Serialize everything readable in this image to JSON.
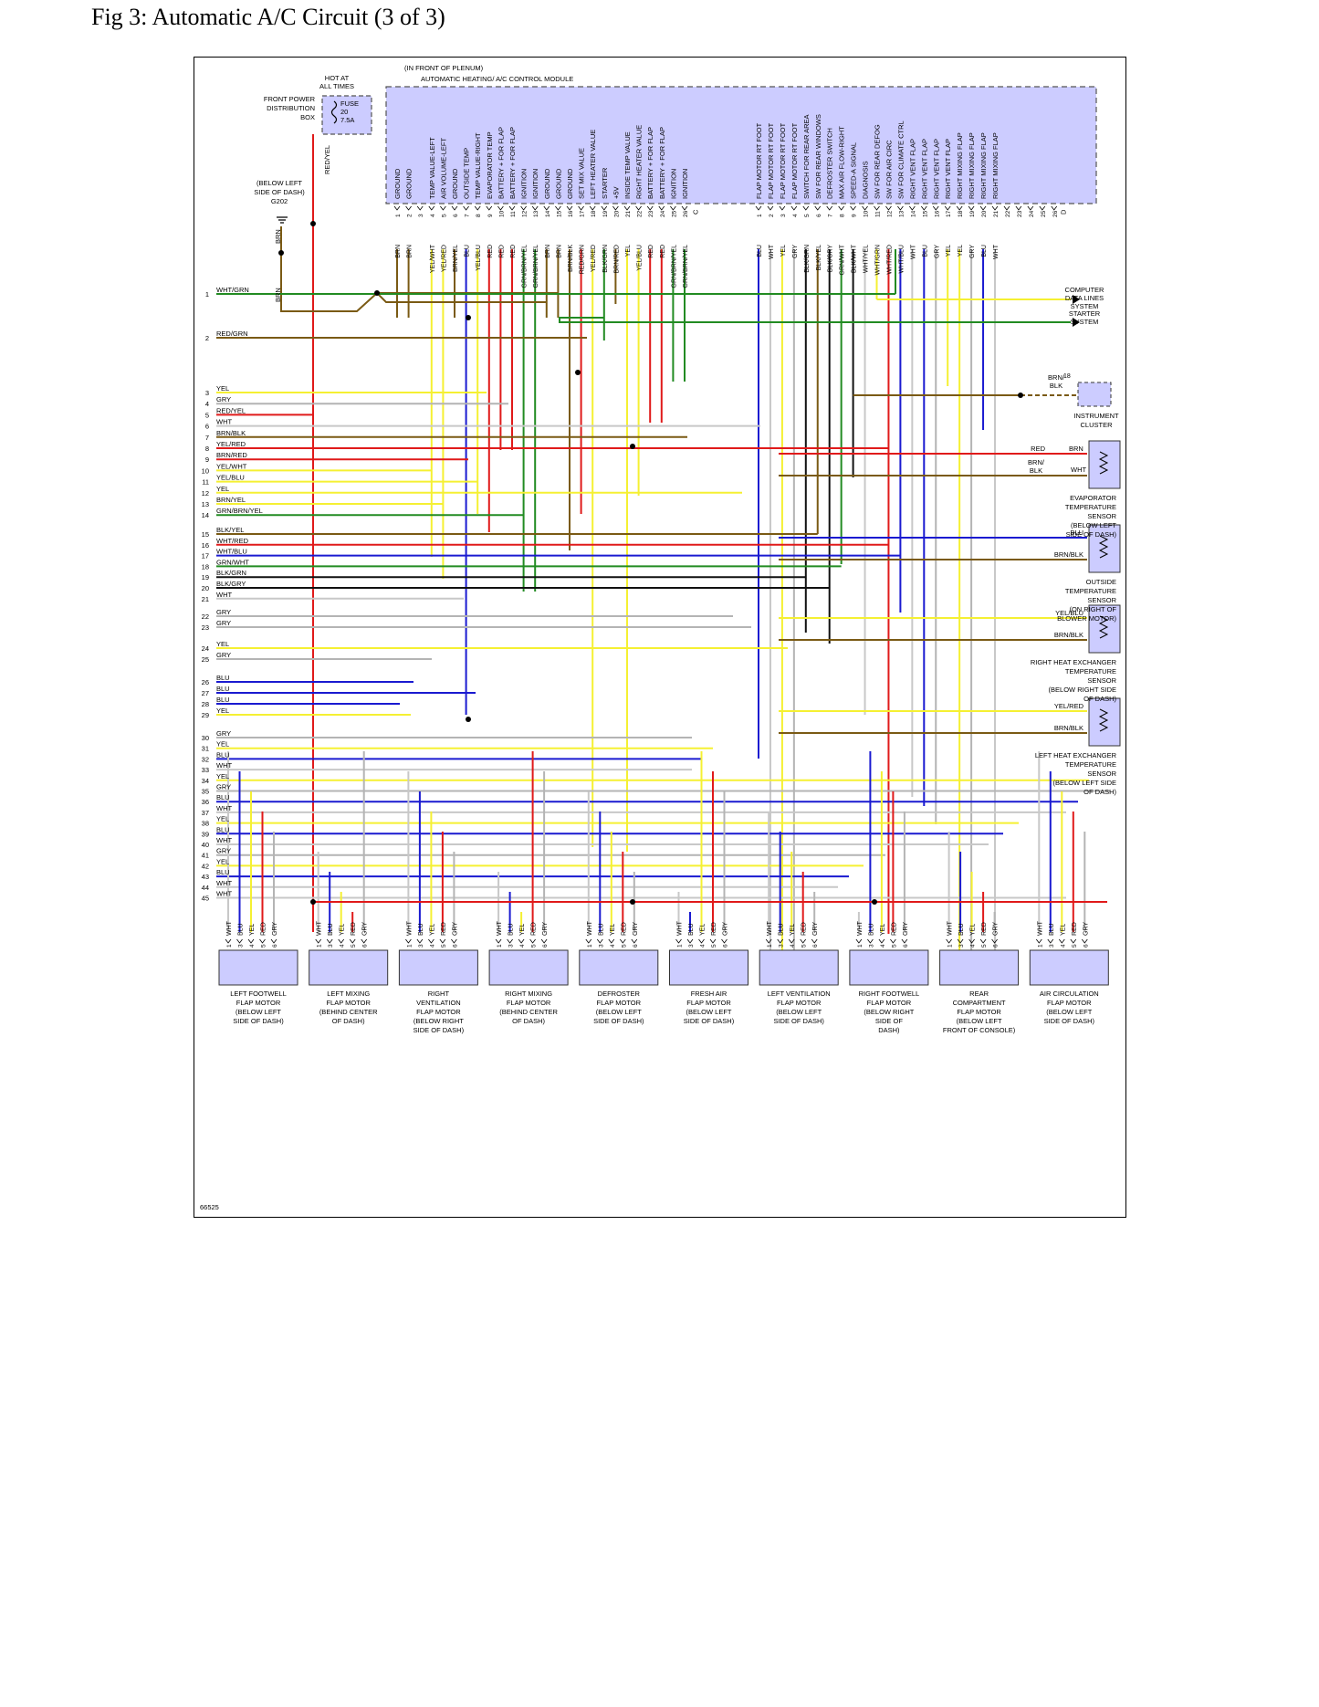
{
  "title": "Fig 3: Automatic A/C Circuit (3 of 3)",
  "figure_number": "66525",
  "colors": {
    "module_fill": "#ccccff",
    "WHT": "#c8c8c8",
    "GRY": "#b4b4b4",
    "BLU": "#1a1ad0",
    "YEL": "#f5f032",
    "RED": "#e01a1a",
    "BRN": "#7a5a14",
    "GRN": "#228b22",
    "BLK": "#111111"
  },
  "power": {
    "fpdb_label": [
      "FRONT POWER",
      "DISTRIBUTION",
      "BOX"
    ],
    "hot_label": [
      "HOT AT",
      "ALL TIMES"
    ],
    "fuse_label": [
      "FUSE",
      "20",
      "7.5A"
    ],
    "fuse_wire": "RED/YEL"
  },
  "ground": {
    "label": [
      "(BELOW LEFT",
      "SIDE OF DASH)",
      "G202"
    ],
    "wire_top": "BRN",
    "wire_bottom": "BRN"
  },
  "module": {
    "location": "(IN FRONT OF PLENUM)",
    "name": "AUTOMATIC HEATING/ A/C CONTROL MODULE",
    "connector_a": "A",
    "connector_c": "C",
    "connector_d": "D",
    "pins_a": [
      {
        "n": "1",
        "func": "GROUND",
        "wire": "BRN"
      },
      {
        "n": "2",
        "func": "GROUND",
        "wire": "BRN"
      },
      {
        "n": "3",
        "func": "",
        "wire": ""
      },
      {
        "n": "4",
        "func": "TEMP VALUE-LEFT",
        "wire": "YEL/WHT"
      },
      {
        "n": "5",
        "func": "AIR VOLUME-LEFT",
        "wire": "YEL/RED"
      },
      {
        "n": "6",
        "func": "GROUND",
        "wire": "BRN/YEL"
      },
      {
        "n": "7",
        "func": "OUTSIDE TEMP",
        "wire": "BLU"
      },
      {
        "n": "8",
        "func": "TEMP VALUE-RIGHT",
        "wire": "YEL/BLU"
      },
      {
        "n": "9",
        "func": "EVAPORATOR TEMP",
        "wire": "RED"
      },
      {
        "n": "10",
        "func": "BATTERY + FOR FLAP",
        "wire": "RED"
      },
      {
        "n": "11",
        "func": "BATTERY + FOR FLAP",
        "wire": "RED"
      },
      {
        "n": "12",
        "func": "IGNITION",
        "wire": "GRN/BRN/YEL"
      },
      {
        "n": "13",
        "func": "IGNITION",
        "wire": "GRN/BRN/YEL"
      },
      {
        "n": "14",
        "func": "GROUND",
        "wire": "BRN"
      },
      {
        "n": "15",
        "func": "GROUND",
        "wire": "BRN"
      },
      {
        "n": "16",
        "func": "GROUND",
        "wire": "BRN/BLK"
      },
      {
        "n": "17",
        "func": "SET MIX VALUE",
        "wire": "RED/GRN"
      },
      {
        "n": "18",
        "func": "LEFT HEATER VALUE",
        "wire": "YEL/RED"
      },
      {
        "n": "19",
        "func": "STARTER",
        "wire": "BLK/GRN"
      },
      {
        "n": "20",
        "func": "+5V",
        "wire": "BRN/RED"
      },
      {
        "n": "21",
        "func": "INSIDE TEMP VALUE",
        "wire": "YEL"
      },
      {
        "n": "22",
        "func": "RIGHT HEATER VALUE",
        "wire": "YEL/BLU"
      },
      {
        "n": "23",
        "func": "BATTERY + FOR FLAP",
        "wire": "RED"
      },
      {
        "n": "24",
        "func": "BATTERY + FOR FLAP",
        "wire": "RED"
      },
      {
        "n": "25",
        "func": "IGNITION",
        "wire": "GRN/BRN/YEL"
      },
      {
        "n": "26",
        "func": "IGNITION",
        "wire": "GRN/BRN/YEL"
      }
    ],
    "pins_c": [
      {
        "n": "1",
        "func": "FLAP MOTOR RT FOOT",
        "wire": "BLU"
      },
      {
        "n": "2",
        "func": "FLAP MOTOR RT FOOT",
        "wire": "WHT"
      },
      {
        "n": "3",
        "func": "FLAP MOTOR RT FOOT",
        "wire": "YEL"
      },
      {
        "n": "4",
        "func": "FLAP MOTOR RT FOOT",
        "wire": "GRY"
      },
      {
        "n": "5",
        "func": "SWITCH FOR REAR AREA",
        "wire": "BLK/GRN"
      },
      {
        "n": "6",
        "func": "SW FOR REAR WINDOWS",
        "wire": "BLK/YEL"
      },
      {
        "n": "7",
        "func": "DEFROSTER SWITCH",
        "wire": "BLK/GRY"
      },
      {
        "n": "8",
        "func": "MAX AIR FLOW-RIGHT",
        "wire": "GRN/WHT"
      },
      {
        "n": "9",
        "func": "SPEED-A SIGNAL",
        "wire": "BLK/WHT"
      },
      {
        "n": "10",
        "func": "DIAGNOSIS",
        "wire": "WHT/YEL"
      },
      {
        "n": "11",
        "func": "SW FOR REAR DEFOG",
        "wire": "WHT/GRN"
      },
      {
        "n": "12",
        "func": "SW FOR AIR CIRC",
        "wire": "WHT/RED"
      },
      {
        "n": "13",
        "func": "SW FOR CLIMATE CTRL",
        "wire": "WHT/BLU"
      },
      {
        "n": "14",
        "func": "RIGHT VENT FLAP",
        "wire": "WHT"
      },
      {
        "n": "15",
        "func": "RIGHT VENT FLAP",
        "wire": "BLU"
      },
      {
        "n": "16",
        "func": "RIGHT VENT FLAP",
        "wire": "GRY"
      },
      {
        "n": "17",
        "func": "RIGHT VENT FLAP",
        "wire": "YEL"
      },
      {
        "n": "18",
        "func": "RIGHT MIXING FLAP",
        "wire": "YEL"
      },
      {
        "n": "19",
        "func": "RIGHT MIXING FLAP",
        "wire": "GRY"
      },
      {
        "n": "20",
        "func": "RIGHT MIXING FLAP",
        "wire": "BLU"
      },
      {
        "n": "21",
        "func": "RIGHT MIXING FLAP",
        "wire": "WHT"
      },
      {
        "n": "22",
        "func": "",
        "wire": ""
      },
      {
        "n": "23",
        "func": "",
        "wire": ""
      },
      {
        "n": "24",
        "func": "",
        "wire": ""
      },
      {
        "n": "25",
        "func": "",
        "wire": ""
      },
      {
        "n": "26",
        "func": "",
        "wire": ""
      }
    ]
  },
  "left_wires": [
    {
      "n": "1",
      "color": "WHT/GRN"
    },
    {
      "n": "2",
      "color": "RED/GRN"
    },
    {
      "n": "3",
      "color": "YEL"
    },
    {
      "n": "4",
      "color": "GRY"
    },
    {
      "n": "5",
      "color": "RED/YEL"
    },
    {
      "n": "6",
      "color": "WHT"
    },
    {
      "n": "7",
      "color": "BRN/BLK"
    },
    {
      "n": "8",
      "color": "YEL/RED"
    },
    {
      "n": "9",
      "color": "BRN/RED"
    },
    {
      "n": "10",
      "color": "YEL/WHT"
    },
    {
      "n": "11",
      "color": "YEL/BLU"
    },
    {
      "n": "12",
      "color": "YEL"
    },
    {
      "n": "13",
      "color": "BRN/YEL"
    },
    {
      "n": "14",
      "color": "GRN/BRN/YEL"
    },
    {
      "n": "15",
      "color": "BLK/YEL"
    },
    {
      "n": "16",
      "color": "WHT/RED"
    },
    {
      "n": "17",
      "color": "WHT/BLU"
    },
    {
      "n": "18",
      "color": "GRN/WHT"
    },
    {
      "n": "19",
      "color": "BLK/GRN"
    },
    {
      "n": "20",
      "color": "BLK/GRY"
    },
    {
      "n": "21",
      "color": "WHT"
    },
    {
      "n": "22",
      "color": "GRY"
    },
    {
      "n": "23",
      "color": "GRY"
    },
    {
      "n": "24",
      "color": "YEL"
    },
    {
      "n": "25",
      "color": "GRY"
    },
    {
      "n": "26",
      "color": "BLU"
    },
    {
      "n": "27",
      "color": "BLU"
    },
    {
      "n": "28",
      "color": "BLU"
    },
    {
      "n": "29",
      "color": "YEL"
    },
    {
      "n": "30",
      "color": "GRY"
    },
    {
      "n": "31",
      "color": "YEL"
    },
    {
      "n": "32",
      "color": "BLU"
    },
    {
      "n": "33",
      "color": "WHT"
    },
    {
      "n": "34",
      "color": "YEL"
    },
    {
      "n": "35",
      "color": "GRY"
    },
    {
      "n": "36",
      "color": "BLU"
    },
    {
      "n": "37",
      "color": "WHT"
    },
    {
      "n": "38",
      "color": "YEL"
    },
    {
      "n": "39",
      "color": "BLU"
    },
    {
      "n": "40",
      "color": "WHT"
    },
    {
      "n": "41",
      "color": "GRY"
    },
    {
      "n": "42",
      "color": "YEL"
    },
    {
      "n": "43",
      "color": "BLU"
    },
    {
      "n": "44",
      "color": "WHT"
    },
    {
      "n": "45",
      "color": "WHT"
    }
  ],
  "right_systems": {
    "computer": [
      "COMPUTER",
      "DATA LINES",
      "SYSTEM"
    ],
    "starter": [
      "STARTER",
      "SYSTEM"
    ]
  },
  "instrument_cluster": {
    "label": [
      "INSTRUMENT",
      "CLUSTER"
    ],
    "wire": [
      "BRN/",
      "BLK"
    ],
    "pin": "18"
  },
  "sensors": [
    {
      "name": [
        "EVAPORATOR",
        "TEMPERATURE",
        "SENSOR",
        "(BELOW LEFT",
        "SIDE OF DASH)"
      ],
      "wire_top": "RED",
      "wire_top_right": "BRN",
      "wire_bottom": [
        "BRN/",
        "BLK"
      ],
      "wire_bottom_right": "WHT"
    },
    {
      "name": [
        "OUTSIDE",
        "TEMPERATURE",
        "SENSOR",
        "(ON RIGHT OF",
        "BLOWER MOTOR)"
      ],
      "wire_top": "BLU",
      "wire_bottom": "BRN/BLK"
    },
    {
      "name": [
        "RIGHT HEAT EXCHANGER",
        "TEMPERATURE",
        "SENSOR",
        "(BELOW RIGHT SIDE",
        "OF DASH)"
      ],
      "wire_top": "YEL/BLU",
      "wire_bottom": "BRN/BLK"
    },
    {
      "name": [
        "LEFT HEAT EXCHANGER",
        "TEMPERATURE",
        "SENSOR",
        "(BELOW LEFT SIDE",
        "OF DASH)"
      ],
      "wire_top": "YEL/RED",
      "wire_bottom": "BRN/BLK"
    }
  ],
  "motor_pins": [
    {
      "n": "1",
      "wire": "WHT"
    },
    {
      "n": "3",
      "wire": "BLU"
    },
    {
      "n": "4",
      "wire": "YEL"
    },
    {
      "n": "5",
      "wire": "RED"
    },
    {
      "n": "6",
      "wire": "GRY"
    }
  ],
  "motors": [
    {
      "name": [
        "LEFT FOOTWELL",
        "FLAP MOTOR",
        "(BELOW LEFT",
        "SIDE OF DASH)"
      ]
    },
    {
      "name": [
        "LEFT MIXING",
        "FLAP MOTOR",
        "(BEHIND CENTER",
        "OF DASH)"
      ]
    },
    {
      "name": [
        "RIGHT",
        "VENTILATION",
        "FLAP MOTOR",
        "(BELOW RIGHT",
        "SIDE OF DASH)"
      ]
    },
    {
      "name": [
        "RIGHT MIXING",
        "FLAP MOTOR",
        "(BEHIND CENTER",
        "OF DASH)"
      ]
    },
    {
      "name": [
        "DEFROSTER",
        "FLAP MOTOR",
        "(BELOW LEFT",
        "SIDE OF DASH)"
      ]
    },
    {
      "name": [
        "FRESH AIR",
        "FLAP MOTOR",
        "(BELOW LEFT",
        "SIDE OF DASH)"
      ]
    },
    {
      "name": [
        "LEFT VENTILATION",
        "FLAP MOTOR",
        "(BELOW LEFT",
        "SIDE OF DASH)"
      ]
    },
    {
      "name": [
        "RIGHT FOOTWELL",
        "FLAP MOTOR",
        "(BELOW RIGHT",
        "SIDE OF",
        "DASH)"
      ]
    },
    {
      "name": [
        "REAR",
        "COMPARTMENT",
        "FLAP MOTOR",
        "(BELOW LEFT",
        "FRONT OF CONSOLE)"
      ]
    },
    {
      "name": [
        "AIR CIRCULATION",
        "FLAP MOTOR",
        "(BELOW LEFT",
        "SIDE OF DASH)"
      ]
    }
  ]
}
